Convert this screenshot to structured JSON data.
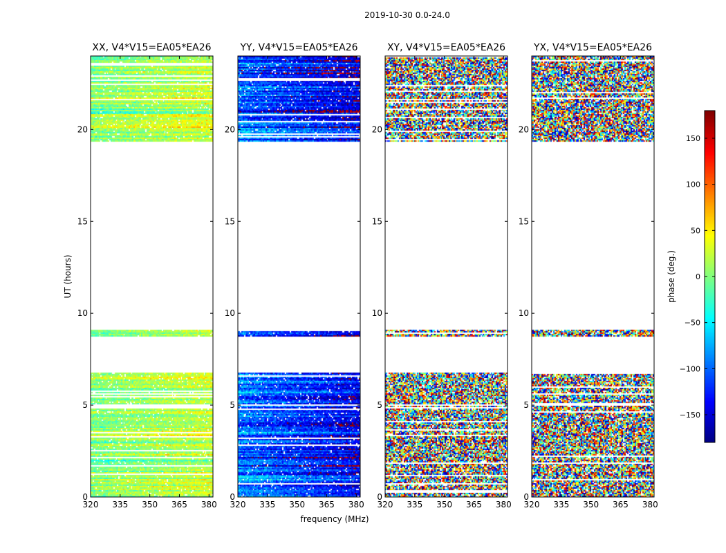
{
  "figure": {
    "title": "2019-10-30 0.0-24.0"
  },
  "chart_data": {
    "type": "heatmap",
    "xlabel": "frequency (MHz)",
    "ylabel": "UT (hours)",
    "xlim": [
      320,
      382
    ],
    "ylim": [
      0,
      24
    ],
    "x_ticks": [
      320,
      335,
      350,
      365,
      380
    ],
    "y_ticks": [
      0,
      5,
      10,
      15,
      20
    ],
    "data_time_ranges_hours": [
      [
        0.0,
        4.95
      ],
      [
        5.05,
        6.75
      ],
      [
        8.75,
        9.1
      ],
      [
        19.4,
        24.0
      ]
    ],
    "panels": [
      {
        "title": "XX, V4*V15=EA05*EA26",
        "pattern": "parallel",
        "center_phase_deg": 0,
        "spread_deg": 45
      },
      {
        "title": "YY, V4*V15=EA05*EA26",
        "pattern": "parallel",
        "center_phase_deg": -95,
        "spread_deg": 60
      },
      {
        "title": "XY, V4*V15=EA05*EA26",
        "pattern": "cross",
        "center_phase_deg": 0,
        "spread_deg": 180
      },
      {
        "title": "YX, V4*V15=EA05*EA26",
        "pattern": "cross",
        "center_phase_deg": 0,
        "spread_deg": 180
      }
    ],
    "colorbar": {
      "label": "phase (deg.)",
      "range": [
        -180,
        180
      ],
      "ticks": [
        150,
        100,
        50,
        0,
        -50,
        -100,
        -150
      ],
      "tick_labels": [
        "150",
        "100",
        "50",
        "0",
        "−50",
        "−100",
        "−150"
      ],
      "colormap": "jet"
    }
  }
}
